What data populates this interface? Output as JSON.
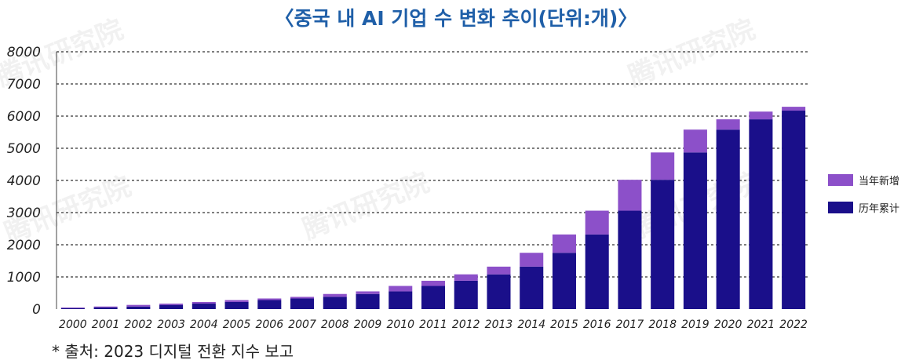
{
  "title": "〈중국 내 AI 기업 수 변화 추이(단위:개)〉",
  "source": "* 출처: 2023 디지털 전환 지수 보고",
  "watermark": "腾讯研究院",
  "colors": {
    "new": "#8c50c9",
    "cumulative": "#1a0f8a",
    "title": "#1f5fa8"
  },
  "chart_data": {
    "type": "bar",
    "stacked": true,
    "title": "〈중국 내 AI 기업 수 변화 추이(단위:개)〉",
    "categories": [
      "2000",
      "2001",
      "2002",
      "2003",
      "2004",
      "2005",
      "2006",
      "2007",
      "2008",
      "2009",
      "2010",
      "2011",
      "2012",
      "2013",
      "2014",
      "2015",
      "2016",
      "2017",
      "2018",
      "2019",
      "2020",
      "2021",
      "2022"
    ],
    "series": [
      {
        "name": "历年累计",
        "color": "#1a0f8a",
        "values": [
          30,
          50,
          80,
          130,
          170,
          220,
          280,
          330,
          380,
          470,
          550,
          720,
          880,
          1080,
          1320,
          1750,
          2320,
          3060,
          4020,
          4870,
          5580,
          5900,
          6170
        ]
      },
      {
        "name": "当年新增",
        "color": "#8c50c9",
        "values": [
          20,
          30,
          50,
          40,
          50,
          60,
          50,
          50,
          90,
          80,
          170,
          160,
          200,
          240,
          430,
          570,
          740,
          960,
          850,
          710,
          320,
          240,
          120
        ]
      }
    ],
    "legend": [
      "当年新增",
      "历年累计"
    ],
    "legend_position": "right",
    "y_ticks": [
      "8000",
      "7000",
      "6000",
      "5000",
      "4000",
      "3000",
      "2000",
      "1000",
      "0"
    ],
    "ylim": [
      0,
      8000
    ],
    "grid": "dashed horizontal",
    "xlabel": "",
    "ylabel": ""
  }
}
